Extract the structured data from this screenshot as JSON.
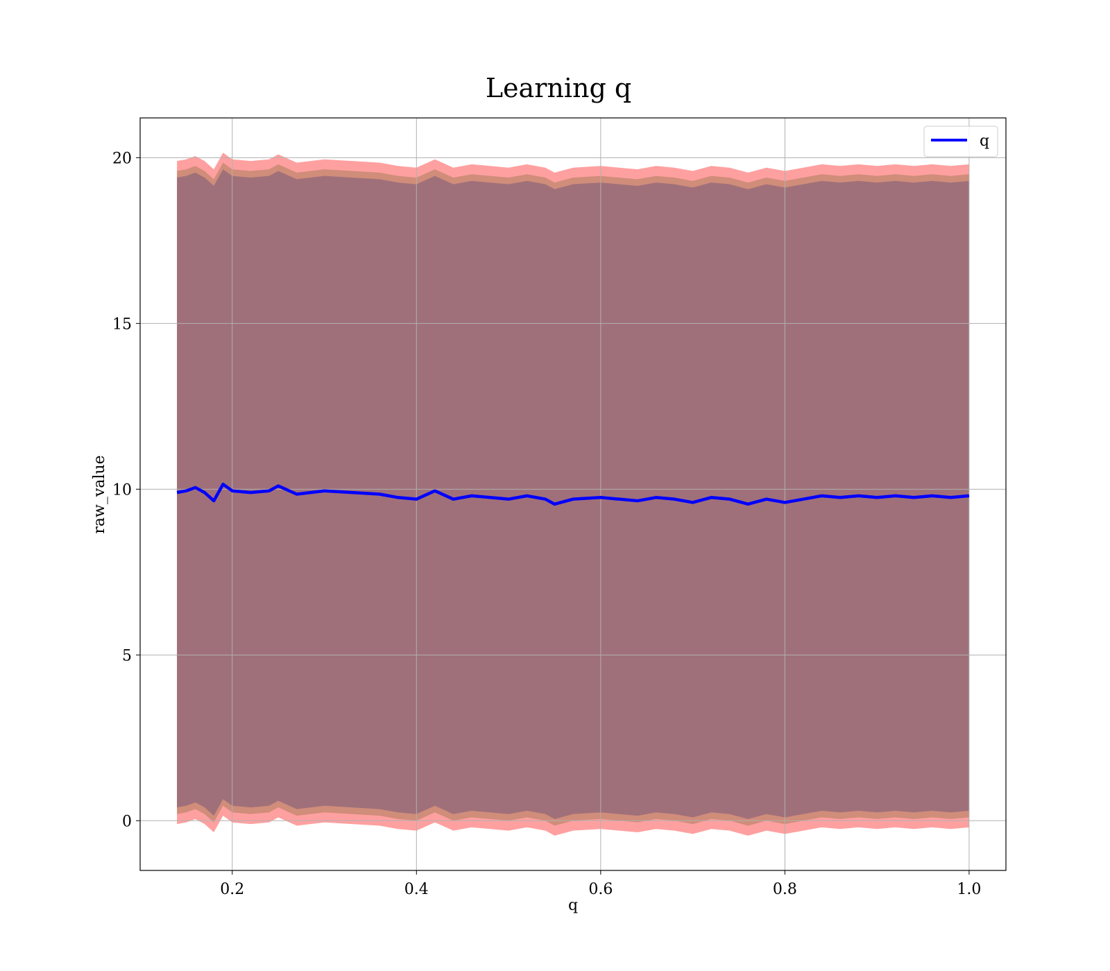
{
  "chart_data": {
    "type": "line",
    "title": "Learning q",
    "xlabel": "q",
    "ylabel": "raw_value",
    "xlim": [
      0.1,
      1.04
    ],
    "ylim": [
      -1.5,
      21.2
    ],
    "x_ticks": [
      0.2,
      0.4,
      0.6,
      0.8,
      1.0
    ],
    "x_tick_labels": [
      "0.2",
      "0.4",
      "0.6",
      "0.8",
      "1.0"
    ],
    "y_ticks": [
      0,
      5,
      10,
      15,
      20
    ],
    "y_tick_labels": [
      "0",
      "5",
      "10",
      "15",
      "20"
    ],
    "grid": true,
    "legend": {
      "position": "top-right",
      "entries": [
        "q"
      ]
    },
    "colors": {
      "line": "#0000ff",
      "band_outer": "#ff8080",
      "band_mid": "#b07a5a",
      "band_inner": "#a0707a"
    },
    "x": [
      0.14,
      0.15,
      0.16,
      0.17,
      0.18,
      0.19,
      0.2,
      0.22,
      0.24,
      0.25,
      0.27,
      0.3,
      0.33,
      0.36,
      0.38,
      0.4,
      0.42,
      0.44,
      0.46,
      0.48,
      0.5,
      0.52,
      0.54,
      0.55,
      0.57,
      0.6,
      0.62,
      0.64,
      0.66,
      0.68,
      0.7,
      0.72,
      0.74,
      0.76,
      0.78,
      0.8,
      0.82,
      0.84,
      0.86,
      0.88,
      0.9,
      0.92,
      0.94,
      0.96,
      0.98,
      1.0
    ],
    "series": [
      {
        "name": "q",
        "values": [
          9.9,
          9.95,
          10.05,
          9.9,
          9.65,
          10.15,
          9.95,
          9.9,
          9.95,
          10.1,
          9.85,
          9.95,
          9.9,
          9.85,
          9.75,
          9.7,
          9.95,
          9.7,
          9.8,
          9.75,
          9.7,
          9.8,
          9.7,
          9.55,
          9.7,
          9.75,
          9.7,
          9.65,
          9.75,
          9.7,
          9.6,
          9.75,
          9.7,
          9.55,
          9.7,
          9.6,
          9.7,
          9.8,
          9.75,
          9.8,
          9.75,
          9.8,
          9.75,
          9.8,
          9.75,
          9.8
        ]
      }
    ],
    "bands": [
      {
        "offset": 10.0,
        "color": "#ff8080",
        "opacity": 0.75
      },
      {
        "offset": 9.7,
        "color": "#b08060",
        "opacity": 0.6
      },
      {
        "offset": 9.5,
        "color": "#a0707a",
        "opacity": 1.0
      }
    ]
  }
}
